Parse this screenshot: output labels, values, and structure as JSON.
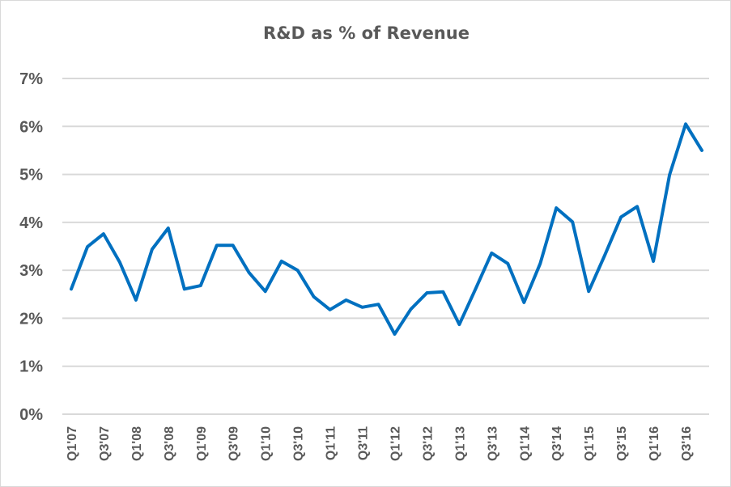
{
  "chart_data": {
    "type": "line",
    "title": "R&D as % of Revenue",
    "xlabel": "",
    "ylabel": "",
    "ylim": [
      0,
      7
    ],
    "y_ticks": [
      "0%",
      "1%",
      "2%",
      "3%",
      "4%",
      "5%",
      "6%",
      "7%"
    ],
    "x_tick_labels": [
      "Q1'07",
      "Q3'07",
      "Q1'08",
      "Q3'08",
      "Q1'09",
      "Q3'09",
      "Q1'10",
      "Q3'10",
      "Q1'11",
      "Q3'11",
      "Q1'12",
      "Q3'12",
      "Q1'13",
      "Q3'13",
      "Q1'14",
      "Q3'14",
      "Q1'15",
      "Q3'15",
      "Q1'16",
      "Q3'16"
    ],
    "quarters_per_tick_label": 2,
    "grid": true,
    "legend": "none",
    "series": [
      {
        "name": "R&D as % of Revenue",
        "color": "#0070C0",
        "values": [
          2.61,
          3.49,
          3.76,
          3.17,
          2.38,
          3.44,
          3.88,
          2.61,
          2.68,
          3.52,
          3.52,
          2.95,
          2.56,
          3.19,
          3.0,
          2.45,
          2.18,
          2.38,
          2.23,
          2.29,
          1.67,
          2.19,
          2.53,
          2.55,
          1.87,
          2.61,
          3.36,
          3.14,
          2.33,
          3.14,
          4.3,
          4.01,
          2.56,
          3.32,
          4.11,
          4.33,
          3.19,
          4.99,
          6.05,
          5.5
        ]
      }
    ]
  }
}
